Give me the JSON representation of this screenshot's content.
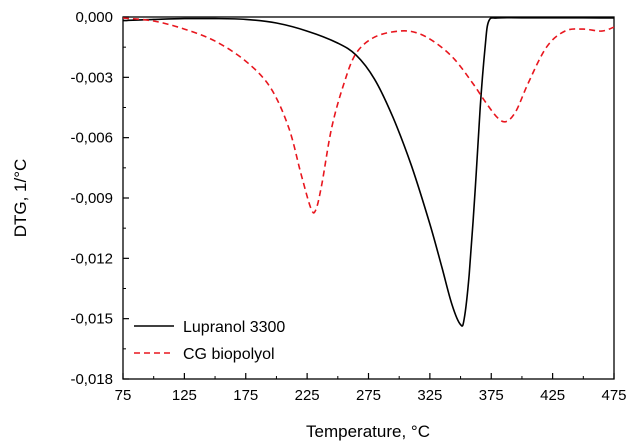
{
  "chart_data": {
    "type": "line",
    "xlabel": "Temperature, °C",
    "ylabel": "DTG, 1/°C",
    "xlim": [
      75,
      475
    ],
    "ylim": [
      -0.018,
      0.0
    ],
    "x_ticks": [
      "75",
      "125",
      "175",
      "225",
      "275",
      "325",
      "375",
      "425",
      "475"
    ],
    "y_ticks": [
      "0,000",
      "-0,003",
      "-0,006",
      "-0,009",
      "-0,012",
      "-0,015",
      "-0,018"
    ],
    "grid": false,
    "legend_position": "bottom-left",
    "series": [
      {
        "name": "Lupranol 3300",
        "color": "#000000",
        "style": "solid",
        "points": [
          [
            75,
            -0.00018
          ],
          [
            100,
            -0.00012
          ],
          [
            125,
            -8e-05
          ],
          [
            150,
            -8e-05
          ],
          [
            175,
            -0.00012
          ],
          [
            200,
            -0.0003
          ],
          [
            225,
            -0.0007
          ],
          [
            250,
            -0.0013
          ],
          [
            265,
            -0.0019
          ],
          [
            280,
            -0.0031
          ],
          [
            295,
            -0.005
          ],
          [
            310,
            -0.0074
          ],
          [
            325,
            -0.0103
          ],
          [
            335,
            -0.0125
          ],
          [
            343,
            -0.0143
          ],
          [
            350,
            -0.0153
          ],
          [
            353,
            -0.015
          ],
          [
            357,
            -0.0128
          ],
          [
            362,
            -0.0085
          ],
          [
            366,
            -0.0045
          ],
          [
            370,
            -0.0015
          ],
          [
            373,
            -0.0002
          ],
          [
            380,
            -5e-05
          ],
          [
            400,
            -4e-05
          ],
          [
            450,
            -4e-05
          ],
          [
            475,
            -5e-05
          ]
        ]
      },
      {
        "name": "CG biopolyol",
        "color": "#e8161e",
        "style": "dashed",
        "points": [
          [
            75,
            -5e-05
          ],
          [
            100,
            -0.0002
          ],
          [
            125,
            -0.0006
          ],
          [
            150,
            -0.0012
          ],
          [
            175,
            -0.0022
          ],
          [
            195,
            -0.0035
          ],
          [
            210,
            -0.0055
          ],
          [
            220,
            -0.0078
          ],
          [
            228,
            -0.0095
          ],
          [
            232,
            -0.0096
          ],
          [
            237,
            -0.0083
          ],
          [
            245,
            -0.0055
          ],
          [
            255,
            -0.0033
          ],
          [
            265,
            -0.0018
          ],
          [
            280,
            -0.001
          ],
          [
            300,
            -0.0007
          ],
          [
            315,
            -0.0008
          ],
          [
            330,
            -0.0013
          ],
          [
            345,
            -0.0021
          ],
          [
            360,
            -0.0033
          ],
          [
            370,
            -0.0042
          ],
          [
            380,
            -0.005
          ],
          [
            387,
            -0.0052
          ],
          [
            395,
            -0.0047
          ],
          [
            405,
            -0.0033
          ],
          [
            420,
            -0.0015
          ],
          [
            435,
            -0.0007
          ],
          [
            450,
            -0.0006
          ],
          [
            465,
            -0.0007
          ],
          [
            475,
            -0.0005
          ]
        ]
      }
    ]
  }
}
